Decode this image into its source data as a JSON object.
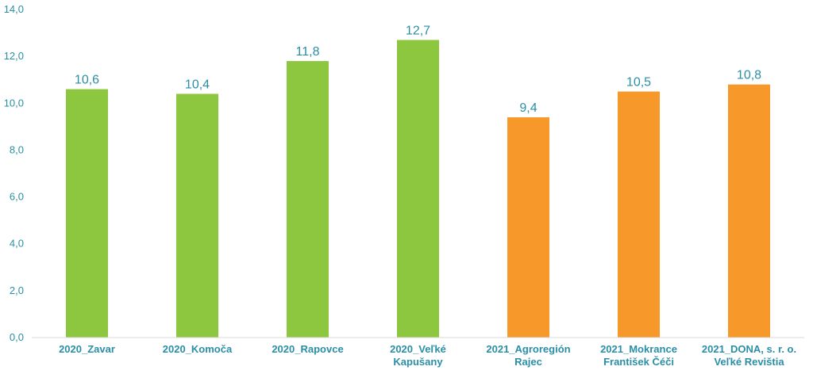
{
  "chart_data": {
    "type": "bar",
    "categories": [
      [
        "2020_Zavar"
      ],
      [
        "2020_Komoča"
      ],
      [
        "2020_Rapovce"
      ],
      [
        "2020_Veľké",
        "Kapušany"
      ],
      [
        "2021_Agroregión",
        "Rajec"
      ],
      [
        "2021_Mokrance",
        "František Čéči"
      ],
      [
        "2021_DONA, s. r. o.",
        "Veľké Revištia"
      ]
    ],
    "values": [
      10.6,
      10.4,
      11.8,
      12.7,
      9.4,
      10.5,
      10.8
    ],
    "value_labels": [
      "10,6",
      "10,4",
      "11,8",
      "12,7",
      "9,4",
      "10,5",
      "10,8"
    ],
    "bar_colors": [
      "#8dc63f",
      "#8dc63f",
      "#8dc63f",
      "#8dc63f",
      "#f7982a",
      "#f7982a",
      "#f7982a"
    ],
    "yticks": [
      "0,0",
      "2,0",
      "4,0",
      "6,0",
      "8,0",
      "10,0",
      "12,0",
      "14,0"
    ],
    "ylim": [
      0,
      14
    ],
    "grid": false,
    "legend": "none",
    "title": "",
    "xlabel": "",
    "ylabel": ""
  }
}
